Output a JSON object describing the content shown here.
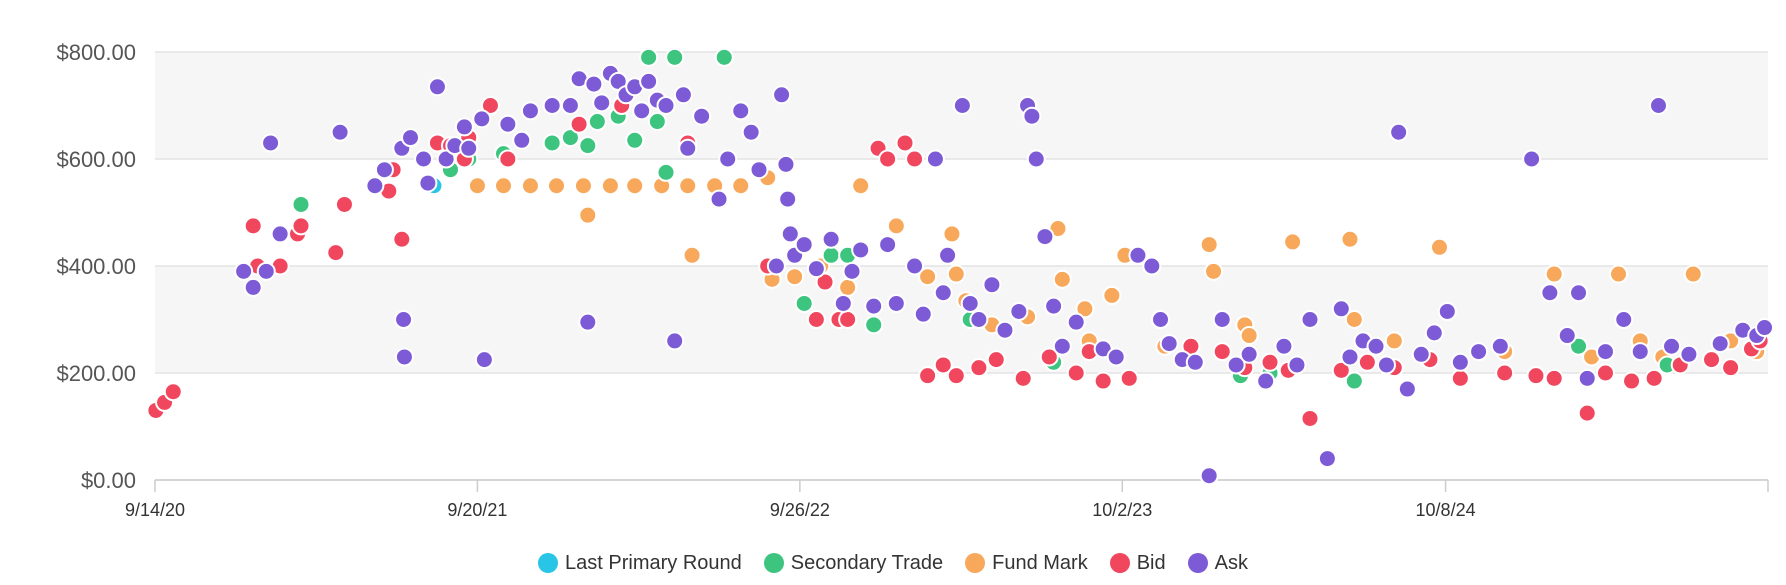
{
  "chart_data": {
    "type": "scatter",
    "y_axis": {
      "ticks": [
        "$0.00",
        "$200.00",
        "$400.00",
        "$600.00",
        "$800.00"
      ],
      "ylim": [
        0,
        800
      ],
      "grid": true
    },
    "x_axis": {
      "ticks": [
        "9/14/20",
        "9/20/21",
        "9/26/22",
        "10/2/23",
        "10/8/24"
      ],
      "xlim": [
        "2020-09-14",
        "2025-10-14"
      ]
    },
    "legend_position": "bottom",
    "series": [
      {
        "name": "Last Primary Round",
        "color": "#29C5E6",
        "points": [
          [
            "2021-08-01",
            550
          ]
        ]
      },
      {
        "name": "Secondary Trade",
        "color": "#3DC47E",
        "points": [
          [
            "2021-03-01",
            515
          ],
          [
            "2021-08-20",
            580
          ],
          [
            "2021-09-10",
            600
          ],
          [
            "2021-10-20",
            610
          ],
          [
            "2021-12-15",
            630
          ],
          [
            "2022-01-05",
            640
          ],
          [
            "2022-01-25",
            625
          ],
          [
            "2022-02-05",
            670
          ],
          [
            "2022-03-01",
            680
          ],
          [
            "2022-03-20",
            635
          ],
          [
            "2022-04-05",
            790
          ],
          [
            "2022-04-15",
            670
          ],
          [
            "2022-04-25",
            575
          ],
          [
            "2022-05-05",
            790
          ],
          [
            "2022-07-01",
            790
          ],
          [
            "2022-10-01",
            330
          ],
          [
            "2022-11-01",
            420
          ],
          [
            "2022-11-20",
            420
          ],
          [
            "2022-12-20",
            290
          ],
          [
            "2023-04-10",
            300
          ],
          [
            "2023-07-15",
            220
          ],
          [
            "2024-02-15",
            195
          ],
          [
            "2024-03-20",
            200
          ],
          [
            "2024-06-25",
            185
          ],
          [
            "2025-03-10",
            250
          ],
          [
            "2025-06-20",
            215
          ]
        ]
      },
      {
        "name": "Fund Mark",
        "color": "#F7A85B",
        "points": [
          [
            "2021-09-20",
            550
          ],
          [
            "2021-10-20",
            550
          ],
          [
            "2021-11-20",
            550
          ],
          [
            "2021-12-20",
            550
          ],
          [
            "2022-01-20",
            550
          ],
          [
            "2022-02-20",
            550
          ],
          [
            "2022-03-20",
            550
          ],
          [
            "2022-04-20",
            550
          ],
          [
            "2022-05-20",
            550
          ],
          [
            "2022-06-20",
            550
          ],
          [
            "2022-07-20",
            550
          ],
          [
            "2022-08-20",
            565
          ],
          [
            "2022-01-25",
            495
          ],
          [
            "2022-05-25",
            420
          ],
          [
            "2022-08-25",
            375
          ],
          [
            "2022-09-20",
            380
          ],
          [
            "2022-10-20",
            400
          ],
          [
            "2022-12-05",
            550
          ],
          [
            "2022-11-20",
            360
          ],
          [
            "2023-01-15",
            475
          ],
          [
            "2023-02-20",
            380
          ],
          [
            "2023-03-20",
            460
          ],
          [
            "2023-03-25",
            385
          ],
          [
            "2023-04-05",
            335
          ],
          [
            "2023-05-05",
            290
          ],
          [
            "2023-06-15",
            305
          ],
          [
            "2023-07-20",
            470
          ],
          [
            "2023-07-25",
            375
          ],
          [
            "2023-08-20",
            320
          ],
          [
            "2023-08-25",
            260
          ],
          [
            "2023-09-20",
            345
          ],
          [
            "2023-10-05",
            420
          ],
          [
            "2023-11-20",
            250
          ],
          [
            "2024-01-10",
            440
          ],
          [
            "2024-01-15",
            390
          ],
          [
            "2024-02-20",
            290
          ],
          [
            "2024-02-25",
            270
          ],
          [
            "2024-04-15",
            445
          ],
          [
            "2024-06-20",
            450
          ],
          [
            "2024-06-25",
            300
          ],
          [
            "2024-08-10",
            260
          ],
          [
            "2024-10-01",
            435
          ],
          [
            "2024-12-15",
            240
          ],
          [
            "2025-02-10",
            385
          ],
          [
            "2025-03-25",
            230
          ],
          [
            "2025-04-25",
            385
          ],
          [
            "2025-05-20",
            260
          ],
          [
            "2025-06-15",
            230
          ],
          [
            "2025-07-20",
            385
          ],
          [
            "2025-09-01",
            260
          ],
          [
            "2025-10-01",
            240
          ]
        ]
      },
      {
        "name": "Bid",
        "color": "#F0475F",
        "points": [
          [
            "2020-09-15",
            130
          ],
          [
            "2020-09-25",
            145
          ],
          [
            "2020-10-05",
            165
          ],
          [
            "2021-01-05",
            475
          ],
          [
            "2021-01-10",
            400
          ],
          [
            "2021-02-05",
            400
          ],
          [
            "2021-02-25",
            460
          ],
          [
            "2021-03-01",
            475
          ],
          [
            "2021-04-10",
            425
          ],
          [
            "2021-04-20",
            515
          ],
          [
            "2021-06-10",
            540
          ],
          [
            "2021-06-15",
            580
          ],
          [
            "2021-06-25",
            450
          ],
          [
            "2021-08-05",
            630
          ],
          [
            "2021-08-20",
            625
          ],
          [
            "2021-09-01",
            620
          ],
          [
            "2021-09-05",
            600
          ],
          [
            "2021-09-10",
            640
          ],
          [
            "2021-10-05",
            700
          ],
          [
            "2021-10-25",
            600
          ],
          [
            "2022-01-15",
            665
          ],
          [
            "2022-03-05",
            700
          ],
          [
            "2022-05-20",
            630
          ],
          [
            "2022-08-20",
            400
          ],
          [
            "2022-10-15",
            300
          ],
          [
            "2022-10-25",
            370
          ],
          [
            "2022-11-10",
            300
          ],
          [
            "2022-11-20",
            300
          ],
          [
            "2022-12-25",
            620
          ],
          [
            "2023-01-05",
            600
          ],
          [
            "2023-01-25",
            630
          ],
          [
            "2023-02-05",
            600
          ],
          [
            "2023-02-20",
            195
          ],
          [
            "2023-03-10",
            215
          ],
          [
            "2023-03-25",
            195
          ],
          [
            "2023-04-20",
            210
          ],
          [
            "2023-05-10",
            225
          ],
          [
            "2023-06-10",
            190
          ],
          [
            "2023-07-10",
            230
          ],
          [
            "2023-08-10",
            200
          ],
          [
            "2023-08-25",
            240
          ],
          [
            "2023-09-10",
            185
          ],
          [
            "2023-10-10",
            190
          ],
          [
            "2023-12-20",
            250
          ],
          [
            "2024-01-25",
            240
          ],
          [
            "2024-02-20",
            210
          ],
          [
            "2024-03-20",
            220
          ],
          [
            "2024-04-10",
            205
          ],
          [
            "2024-05-05",
            115
          ],
          [
            "2024-06-10",
            205
          ],
          [
            "2024-07-10",
            220
          ],
          [
            "2024-08-10",
            210
          ],
          [
            "2024-09-20",
            225
          ],
          [
            "2024-10-25",
            190
          ],
          [
            "2024-12-15",
            200
          ],
          [
            "2025-01-20",
            195
          ],
          [
            "2025-02-10",
            190
          ],
          [
            "2025-03-20",
            125
          ],
          [
            "2025-04-10",
            200
          ],
          [
            "2025-05-10",
            185
          ],
          [
            "2025-06-05",
            190
          ],
          [
            "2025-07-05",
            215
          ],
          [
            "2025-08-10",
            225
          ],
          [
            "2025-09-01",
            210
          ],
          [
            "2025-09-25",
            245
          ],
          [
            "2025-10-05",
            260
          ]
        ]
      },
      {
        "name": "Ask",
        "color": "#7E5BD6",
        "points": [
          [
            "2020-12-25",
            390
          ],
          [
            "2021-01-05",
            360
          ],
          [
            "2021-01-20",
            390
          ],
          [
            "2021-01-25",
            630
          ],
          [
            "2021-02-05",
            460
          ],
          [
            "2021-04-15",
            650
          ],
          [
            "2021-05-25",
            550
          ],
          [
            "2021-06-05",
            580
          ],
          [
            "2021-06-25",
            620
          ],
          [
            "2021-06-27",
            300
          ],
          [
            "2021-06-28",
            230
          ],
          [
            "2021-07-05",
            640
          ],
          [
            "2021-07-20",
            600
          ],
          [
            "2021-07-25",
            555
          ],
          [
            "2021-08-05",
            735
          ],
          [
            "2021-08-15",
            600
          ],
          [
            "2021-08-25",
            625
          ],
          [
            "2021-09-05",
            660
          ],
          [
            "2021-09-10",
            620
          ],
          [
            "2021-09-25",
            675
          ],
          [
            "2021-09-28",
            225
          ],
          [
            "2021-10-25",
            665
          ],
          [
            "2021-11-10",
            635
          ],
          [
            "2021-11-20",
            690
          ],
          [
            "2021-12-15",
            700
          ],
          [
            "2022-01-05",
            700
          ],
          [
            "2022-01-15",
            750
          ],
          [
            "2022-01-25",
            295
          ],
          [
            "2022-02-01",
            740
          ],
          [
            "2022-02-10",
            705
          ],
          [
            "2022-02-20",
            760
          ],
          [
            "2022-03-01",
            745
          ],
          [
            "2022-03-10",
            720
          ],
          [
            "2022-03-20",
            735
          ],
          [
            "2022-03-28",
            690
          ],
          [
            "2022-04-05",
            745
          ],
          [
            "2022-04-15",
            710
          ],
          [
            "2022-04-25",
            700
          ],
          [
            "2022-05-05",
            260
          ],
          [
            "2022-05-15",
            720
          ],
          [
            "2022-05-20",
            620
          ],
          [
            "2022-06-05",
            680
          ],
          [
            "2022-06-25",
            525
          ],
          [
            "2022-07-05",
            600
          ],
          [
            "2022-07-20",
            690
          ],
          [
            "2022-08-01",
            650
          ],
          [
            "2022-08-10",
            580
          ],
          [
            "2022-08-30",
            400
          ],
          [
            "2022-09-05",
            720
          ],
          [
            "2022-09-10",
            590
          ],
          [
            "2022-09-12",
            525
          ],
          [
            "2022-09-15",
            460
          ],
          [
            "2022-09-20",
            420
          ],
          [
            "2022-10-01",
            440
          ],
          [
            "2022-10-15",
            395
          ],
          [
            "2022-11-01",
            450
          ],
          [
            "2022-11-15",
            330
          ],
          [
            "2022-11-25",
            390
          ],
          [
            "2022-12-05",
            430
          ],
          [
            "2022-12-20",
            325
          ],
          [
            "2023-01-05",
            440
          ],
          [
            "2023-01-15",
            330
          ],
          [
            "2023-02-05",
            400
          ],
          [
            "2023-02-15",
            310
          ],
          [
            "2023-03-01",
            600
          ],
          [
            "2023-03-10",
            350
          ],
          [
            "2023-03-15",
            420
          ],
          [
            "2023-04-01",
            700
          ],
          [
            "2023-04-10",
            330
          ],
          [
            "2023-04-20",
            300
          ],
          [
            "2023-05-05",
            365
          ],
          [
            "2023-05-20",
            280
          ],
          [
            "2023-06-05",
            315
          ],
          [
            "2023-06-15",
            700
          ],
          [
            "2023-06-20",
            680
          ],
          [
            "2023-06-25",
            600
          ],
          [
            "2023-07-05",
            455
          ],
          [
            "2023-07-15",
            325
          ],
          [
            "2023-07-25",
            250
          ],
          [
            "2023-08-10",
            295
          ],
          [
            "2023-09-10",
            245
          ],
          [
            "2023-09-25",
            230
          ],
          [
            "2023-10-20",
            420
          ],
          [
            "2023-11-05",
            400
          ],
          [
            "2023-11-15",
            300
          ],
          [
            "2023-11-25",
            255
          ],
          [
            "2023-12-10",
            225
          ],
          [
            "2023-12-25",
            220
          ],
          [
            "2024-01-10",
            8
          ],
          [
            "2024-01-25",
            300
          ],
          [
            "2024-02-10",
            215
          ],
          [
            "2024-02-25",
            235
          ],
          [
            "2024-03-15",
            185
          ],
          [
            "2024-04-05",
            250
          ],
          [
            "2024-04-20",
            215
          ],
          [
            "2024-05-05",
            300
          ],
          [
            "2024-05-25",
            40
          ],
          [
            "2024-06-10",
            320
          ],
          [
            "2024-06-20",
            230
          ],
          [
            "2024-07-05",
            260
          ],
          [
            "2024-07-20",
            250
          ],
          [
            "2024-08-01",
            215
          ],
          [
            "2024-08-15",
            650
          ],
          [
            "2024-08-25",
            170
          ],
          [
            "2024-09-10",
            235
          ],
          [
            "2024-09-25",
            275
          ],
          [
            "2024-10-10",
            315
          ],
          [
            "2024-10-25",
            220
          ],
          [
            "2024-11-15",
            240
          ],
          [
            "2024-12-10",
            250
          ],
          [
            "2025-01-15",
            600
          ],
          [
            "2025-02-05",
            350
          ],
          [
            "2025-02-25",
            270
          ],
          [
            "2025-03-10",
            350
          ],
          [
            "2025-03-20",
            190
          ],
          [
            "2025-04-10",
            240
          ],
          [
            "2025-05-01",
            300
          ],
          [
            "2025-05-20",
            240
          ],
          [
            "2025-06-10",
            700
          ],
          [
            "2025-06-25",
            250
          ],
          [
            "2025-07-15",
            235
          ],
          [
            "2025-08-20",
            255
          ],
          [
            "2025-09-15",
            280
          ],
          [
            "2025-10-01",
            270
          ],
          [
            "2025-10-10",
            285
          ]
        ]
      }
    ]
  }
}
